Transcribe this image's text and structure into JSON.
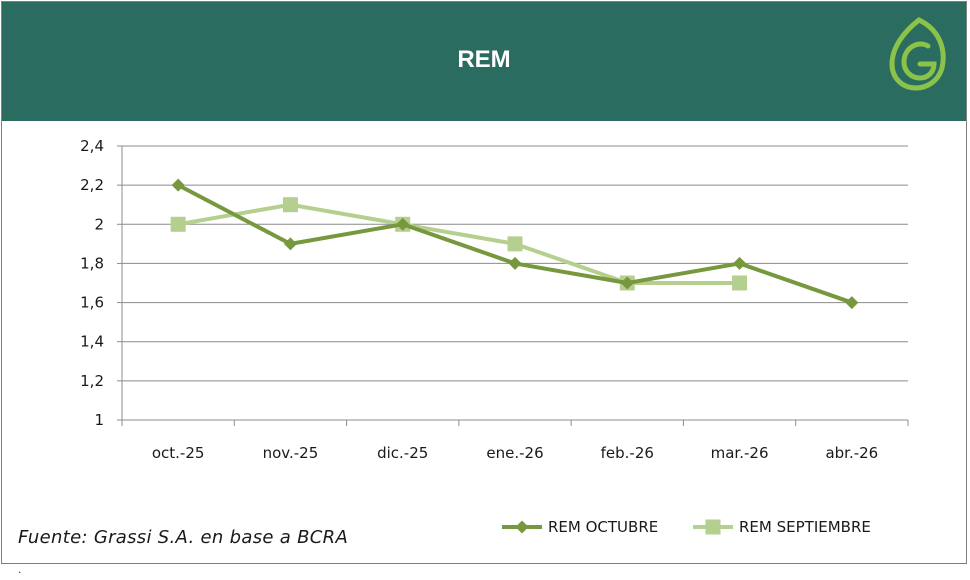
{
  "header": {
    "title": "REM",
    "logo_icon": "leaf-logo-icon"
  },
  "colors": {
    "header_bg": "#2b6c60",
    "series_octubre": "#77983e",
    "series_septiembre": "#b5cf8e",
    "logo": "#8bc34a"
  },
  "chart_data": {
    "type": "line",
    "title": "REM",
    "categories": [
      "oct.-25",
      "nov.-25",
      "dic.-25",
      "ene.-26",
      "feb.-26",
      "mar.-26",
      "abr.-26"
    ],
    "series": [
      {
        "name": "REM OCTUBRE",
        "marker": "diamond",
        "values": [
          2.2,
          1.9,
          2.0,
          1.8,
          1.7,
          1.8,
          1.6
        ]
      },
      {
        "name": "REM SEPTIEMBRE",
        "marker": "square",
        "values": [
          2.0,
          2.1,
          2.0,
          1.9,
          1.7,
          1.7,
          null
        ]
      }
    ],
    "ylim": [
      1,
      2.4
    ],
    "yticks": [
      "1",
      "1,2",
      "1,4",
      "1,6",
      "1,8",
      "2",
      "2,2",
      "2,4"
    ],
    "grid": true,
    "legend": "bottom-right"
  },
  "footer": {
    "source": "Fuente: Grassi S.A.  en base a BCRA",
    "mark": "."
  }
}
